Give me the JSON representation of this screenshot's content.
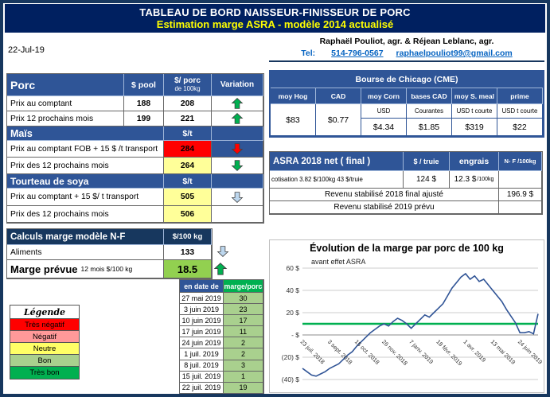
{
  "header": {
    "title": "TABLEAU DE BORD NAISSEUR-FINISSEUR DE PORC",
    "subtitle": "Estimation marge ASRA - modèle 2014 actualisé"
  },
  "info": {
    "date": "22-Jul-19",
    "authors": "Raphaël Pouliot, agr.   &   Réjean Leblanc, agr.",
    "tel_label": "Tel:",
    "tel_number": "514-796-0567",
    "email": "raphaelpouliot99@gmail.com"
  },
  "porc": {
    "title": "Porc",
    "col_pool": "$ pool",
    "col_value_line1": "$/ porc",
    "col_value_line2": "de 100kg",
    "col_variation": "Variation",
    "rows": [
      {
        "label": "Prix au comptant",
        "pool": "188",
        "value": "208",
        "value_bg": "#FFFFFF",
        "variation": {
          "dir": "up",
          "color": "#00B050",
          "bg": "#FFFFFF"
        }
      },
      {
        "label": "Prix 12 prochains mois",
        "pool": "199",
        "value": "221",
        "value_bg": "#FFFFFF",
        "variation": {
          "dir": "up",
          "color": "#00B050",
          "bg": "#FFFFFF"
        }
      }
    ]
  },
  "mais": {
    "title": "Maïs",
    "unit": "$/t",
    "rows": [
      {
        "label": "Prix au comptant FOB + 15 $ /t transport",
        "value": "284",
        "value_bg": "#FF0000",
        "variation": {
          "dir": "down",
          "color": "#FF0000",
          "bg": "#2F5597"
        }
      },
      {
        "label": "Prix des 12 prochains mois",
        "value": "264",
        "value_bg": "#FFFF99",
        "variation": {
          "dir": "down",
          "color": "#00B050",
          "bg": "#FFFFFF"
        }
      }
    ]
  },
  "soya": {
    "title": "Tourteau de soya",
    "unit": "$/t",
    "rows": [
      {
        "label": "Prix au comptant + 15 $/ t transport",
        "value": "505",
        "value_bg": "#FFFF99",
        "variation": {
          "dir": "down",
          "color": "#BDD7EE",
          "bg": "#FFFFFF"
        }
      },
      {
        "label": "Prix des 12 prochains mois",
        "value": "506",
        "value_bg": "#FFFF99",
        "variation": {
          "dir": "none",
          "color": "",
          "bg": "#FFFFFF"
        }
      }
    ]
  },
  "calculs": {
    "title": "Calculs marge  modèle N-F",
    "unit": "$/100 kg",
    "rows": [
      {
        "label": "Aliments",
        "value": "133",
        "value_bg": "#FFFFFF",
        "variation": {
          "dir": "down",
          "color": "#BDD7EE",
          "bg": "#FFFFFF"
        }
      },
      {
        "label_main": "Marge prévue",
        "label_sub": "12 mois  $/100 kg",
        "value": "18.5",
        "value_bg": "#92D050",
        "variation": {
          "dir": "up",
          "color": "#00B050",
          "bg": "#FFFFFF"
        }
      }
    ]
  },
  "legende": {
    "title": "Légende",
    "items": [
      {
        "label": "Très négatif",
        "color": "#FF0000"
      },
      {
        "label": "Négatif",
        "color": "#FF9999"
      },
      {
        "label": "Neutre",
        "color": "#FFFF66"
      },
      {
        "label": "Bon",
        "color": "#A9D08E"
      },
      {
        "label": "Très bon",
        "color": "#00B050"
      }
    ]
  },
  "marge_table": {
    "col_date": "en date de",
    "col_marge": "marge/porc",
    "header_date_bg": "#2F5597",
    "header_marge_bg": "#00B050",
    "cell_bg": "#A9D08E",
    "rows": [
      {
        "date": "27 mai 2019",
        "marge": "30"
      },
      {
        "date": "3 juin 2019",
        "marge": "23"
      },
      {
        "date": "10 juin 2019",
        "marge": "17"
      },
      {
        "date": "17 juin 2019",
        "marge": "11"
      },
      {
        "date": "24 juin 2019",
        "marge": "2"
      },
      {
        "date": "1 juil. 2019",
        "marge": "2"
      },
      {
        "date": "8 juil. 2019",
        "marge": "3"
      },
      {
        "date": "15 juil. 2019",
        "marge": "1"
      },
      {
        "date": "22 juil. 2019",
        "marge": "19"
      }
    ]
  },
  "bourse": {
    "title": "Bourse de Chicago (CME)",
    "columns": [
      "moy Hog",
      "CAD",
      "moy Corn",
      "bases CAD",
      "moy S. meal",
      "prime"
    ],
    "sub": [
      "",
      "",
      "USD",
      "Courantes",
      "USD t courte",
      "USD t courte"
    ],
    "values": [
      "$83",
      "$0.77",
      "$4.34",
      "$1.85",
      "$319",
      "$22"
    ]
  },
  "asra": {
    "title": "ASRA 2018 net ( final )",
    "col_truie": "$ / truie",
    "col_engrais": "engrais",
    "col_nf": "N- F /100kg",
    "cotisation": "cotisation 3.82 $/100kg   43 $/truie",
    "truie_value": "124  $",
    "engrais_value": "12.3 $",
    "engrais_unit": "/100kg",
    "row_2018": "Revenu stabilisé 2018  final ajusté",
    "value_2018": "196.9 $",
    "row_2019": "Revenu stabilisé 2019 prévu",
    "value_2019": ""
  },
  "chart_data": {
    "type": "line",
    "title": "Évolution de la marge par porc de 100 kg",
    "annotation": "avant effet ASRA",
    "xlabel": "",
    "ylabel": "",
    "ylim": [
      -40,
      60
    ],
    "grid": true,
    "legend": "none",
    "yticks": [
      {
        "label": "60 $",
        "value": 60
      },
      {
        "label": "40 $",
        "value": 40
      },
      {
        "label": "20 $",
        "value": 20
      },
      {
        "label": "- $",
        "value": 0
      },
      {
        "label": "(20) $",
        "value": -20
      },
      {
        "label": "(40) $",
        "value": -40
      }
    ],
    "xtick_labels": [
      "23 juil. 2018",
      "3 sept. 2018",
      "15 oct. 2018",
      "26 nov. 2018",
      "7 janv. 2019",
      "18 févr. 2019",
      "1 avr. 2019",
      "13 mai 2019",
      "24 juin 2019"
    ],
    "xtick_indices": [
      0,
      6,
      12,
      18,
      24,
      30,
      36,
      42,
      48
    ],
    "reference_line": {
      "value": 10,
      "color": "#00B050"
    },
    "series": [
      {
        "name": "marge par porc de 100 kg",
        "color": "#305496",
        "values": [
          -30,
          -33,
          -36,
          -37,
          -35,
          -33,
          -30,
          -28,
          -26,
          -22,
          -18,
          -15,
          -10,
          -6,
          -2,
          2,
          5,
          8,
          10,
          8,
          12,
          15,
          13,
          10,
          6,
          10,
          14,
          18,
          16,
          20,
          24,
          28,
          35,
          42,
          47,
          52,
          55,
          50,
          53,
          48,
          50,
          45,
          40,
          35,
          30,
          23,
          17,
          11,
          2,
          2,
          3,
          1,
          19
        ]
      }
    ]
  }
}
